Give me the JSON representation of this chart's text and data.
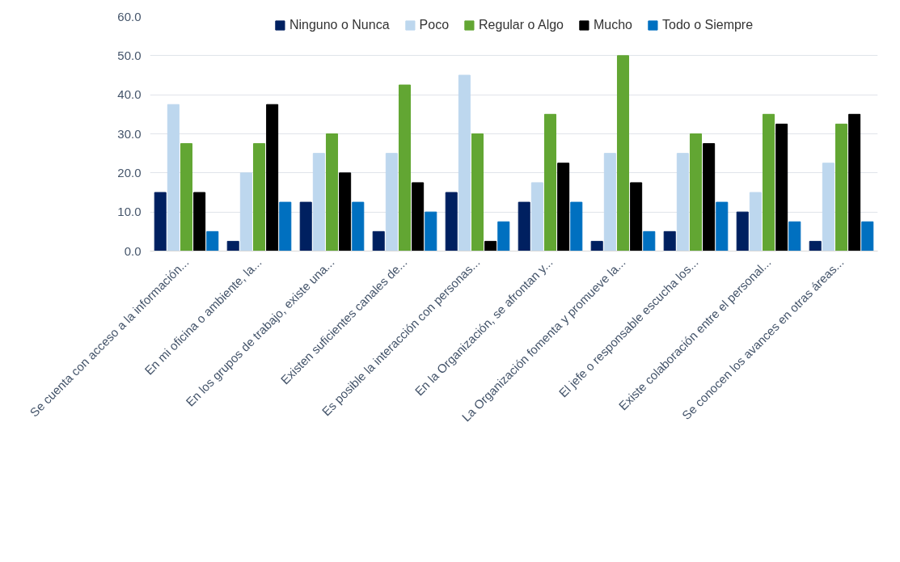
{
  "chart_data": {
    "type": "bar",
    "categories": [
      "Se cuenta con acceso a la información...",
      "En mi oficina o ambiente, la...",
      "En los grupos de trabajo, existe una...",
      "Existen suficientes canales de...",
      "Es posible la interacción con personas...",
      "En la Organización, se afrontan y...",
      "La Organización fomenta y promueve la...",
      "El jefe o responsable escucha los...",
      "Existe colaboración entre el personal...",
      "Se conocen los avances en otras áreas..."
    ],
    "series": [
      {
        "name": "Ninguno o Nunca",
        "color": "#002060",
        "values": [
          15,
          2.5,
          12.5,
          5,
          15,
          12.5,
          2.5,
          5,
          10,
          2.5
        ]
      },
      {
        "name": "Poco",
        "color": "#bdd7ee",
        "values": [
          37.5,
          20,
          25,
          25,
          45,
          17.5,
          25,
          25,
          15,
          22.5
        ]
      },
      {
        "name": "Regular o Algo",
        "color": "#62a633",
        "values": [
          27.5,
          27.5,
          30,
          42.5,
          30,
          35,
          50,
          30,
          35,
          32.5
        ]
      },
      {
        "name": "Mucho",
        "color": "#000000",
        "values": [
          15,
          37.5,
          20,
          17.5,
          2.5,
          22.5,
          17.5,
          27.5,
          32.5,
          35
        ]
      },
      {
        "name": "Todo o Siempre",
        "color": "#0070c0",
        "values": [
          5,
          12.5,
          12.5,
          10,
          7.5,
          12.5,
          5,
          12.5,
          7.5,
          7.5
        ]
      }
    ],
    "ylim": [
      0,
      60
    ],
    "yticks": [
      {
        "value": 0,
        "label": "0.0"
      },
      {
        "value": 10,
        "label": "10.0"
      },
      {
        "value": 20,
        "label": "20.0"
      },
      {
        "value": 30,
        "label": "30.0"
      },
      {
        "value": 40,
        "label": "40.0"
      },
      {
        "value": 50,
        "label": "50.0"
      },
      {
        "value": 60,
        "label": "60.0"
      }
    ],
    "grid": "y",
    "legend": "top"
  }
}
